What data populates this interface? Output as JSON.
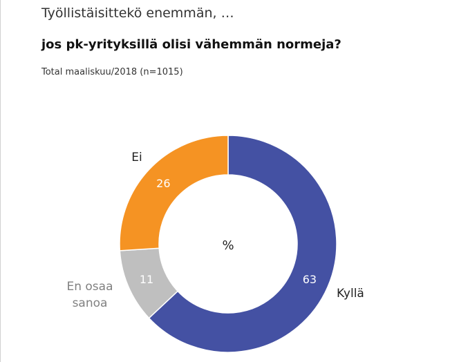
{
  "header": {
    "title": "Työllistäisittekö enemmän, …",
    "question": "jos pk-yrityksillä olisi vähemmän normeja?",
    "sample": "Total maaliskuu/2018  (n=1015)"
  },
  "chart_data": {
    "type": "pie",
    "variant": "donut",
    "center_label": "%",
    "slices": [
      {
        "name": "Kyllä",
        "value": 63,
        "color": "#4451a3",
        "label_color": "#222222"
      },
      {
        "name": "En osaa sanoa",
        "value": 11,
        "color": "#bfbfbf",
        "label_color": "#808080"
      },
      {
        "name": "Ei",
        "value": 26,
        "color": "#f59323",
        "label_color": "#222222"
      }
    ]
  }
}
